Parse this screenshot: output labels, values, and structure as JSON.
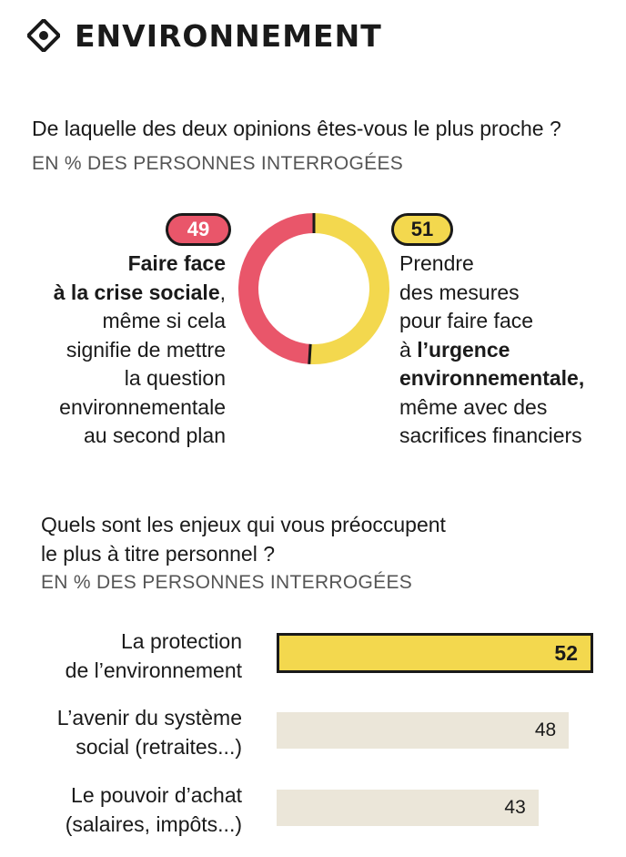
{
  "header": {
    "title": "ENVIRONNEMENT",
    "icon": "target-icon"
  },
  "section1": {
    "question": "De laquelle des deux opinions êtes-vous le plus proche ?",
    "subtitle": "EN % DES PERSONNES INTERROGÉES",
    "left_lines": [
      [
        {
          "t": "Faire face",
          "b": true
        }
      ],
      [
        {
          "t": "à la crise sociale",
          "b": true
        },
        {
          "t": ",",
          "b": false
        }
      ],
      [
        {
          "t": "même si cela",
          "b": false
        }
      ],
      [
        {
          "t": "signifie de mettre",
          "b": false
        }
      ],
      [
        {
          "t": "la question",
          "b": false
        }
      ],
      [
        {
          "t": "environnementale",
          "b": false
        }
      ],
      [
        {
          "t": "au second plan",
          "b": false
        }
      ]
    ],
    "right_lines": [
      [
        {
          "t": "Prendre",
          "b": false
        }
      ],
      [
        {
          "t": "des mesures",
          "b": false
        }
      ],
      [
        {
          "t": "pour faire face",
          "b": false
        }
      ],
      [
        {
          "t": "à ",
          "b": false
        },
        {
          "t": "l’urgence",
          "b": true
        }
      ],
      [
        {
          "t": "environnementale,",
          "b": true
        }
      ],
      [
        {
          "t": "même avec des",
          "b": false
        }
      ],
      [
        {
          "t": "sacrifices financiers",
          "b": false
        }
      ]
    ]
  },
  "section2": {
    "question_lines": [
      "Quels sont les enjeux qui vous préoccupent",
      "le plus à titre personnel ?"
    ],
    "subtitle": "EN % DES PERSONNES INTERROGÉES"
  },
  "colors": {
    "red": "#e9566a",
    "yellow": "#f3d84e",
    "beige": "#ebe6d9",
    "ink": "#1a1a1a"
  },
  "chart_data": [
    {
      "type": "pie",
      "style": "donut",
      "slices": [
        {
          "label": "Faire face à la crise sociale",
          "value": 49,
          "color": "#e9566a"
        },
        {
          "label": "Prendre des mesures pour faire face à l’urgence environnementale",
          "value": 51,
          "color": "#f3d84e"
        }
      ]
    },
    {
      "type": "bar",
      "orientation": "horizontal",
      "xlim": [
        0,
        52
      ],
      "categories": [
        [
          "La protection",
          "de l’environnement"
        ],
        [
          "L’avenir du système",
          "social (retraites...)"
        ],
        [
          "Le pouvoir d’achat",
          "(salaires, impôts...)"
        ]
      ],
      "values": [
        52,
        48,
        43
      ],
      "highlight": [
        true,
        false,
        false
      ]
    }
  ]
}
